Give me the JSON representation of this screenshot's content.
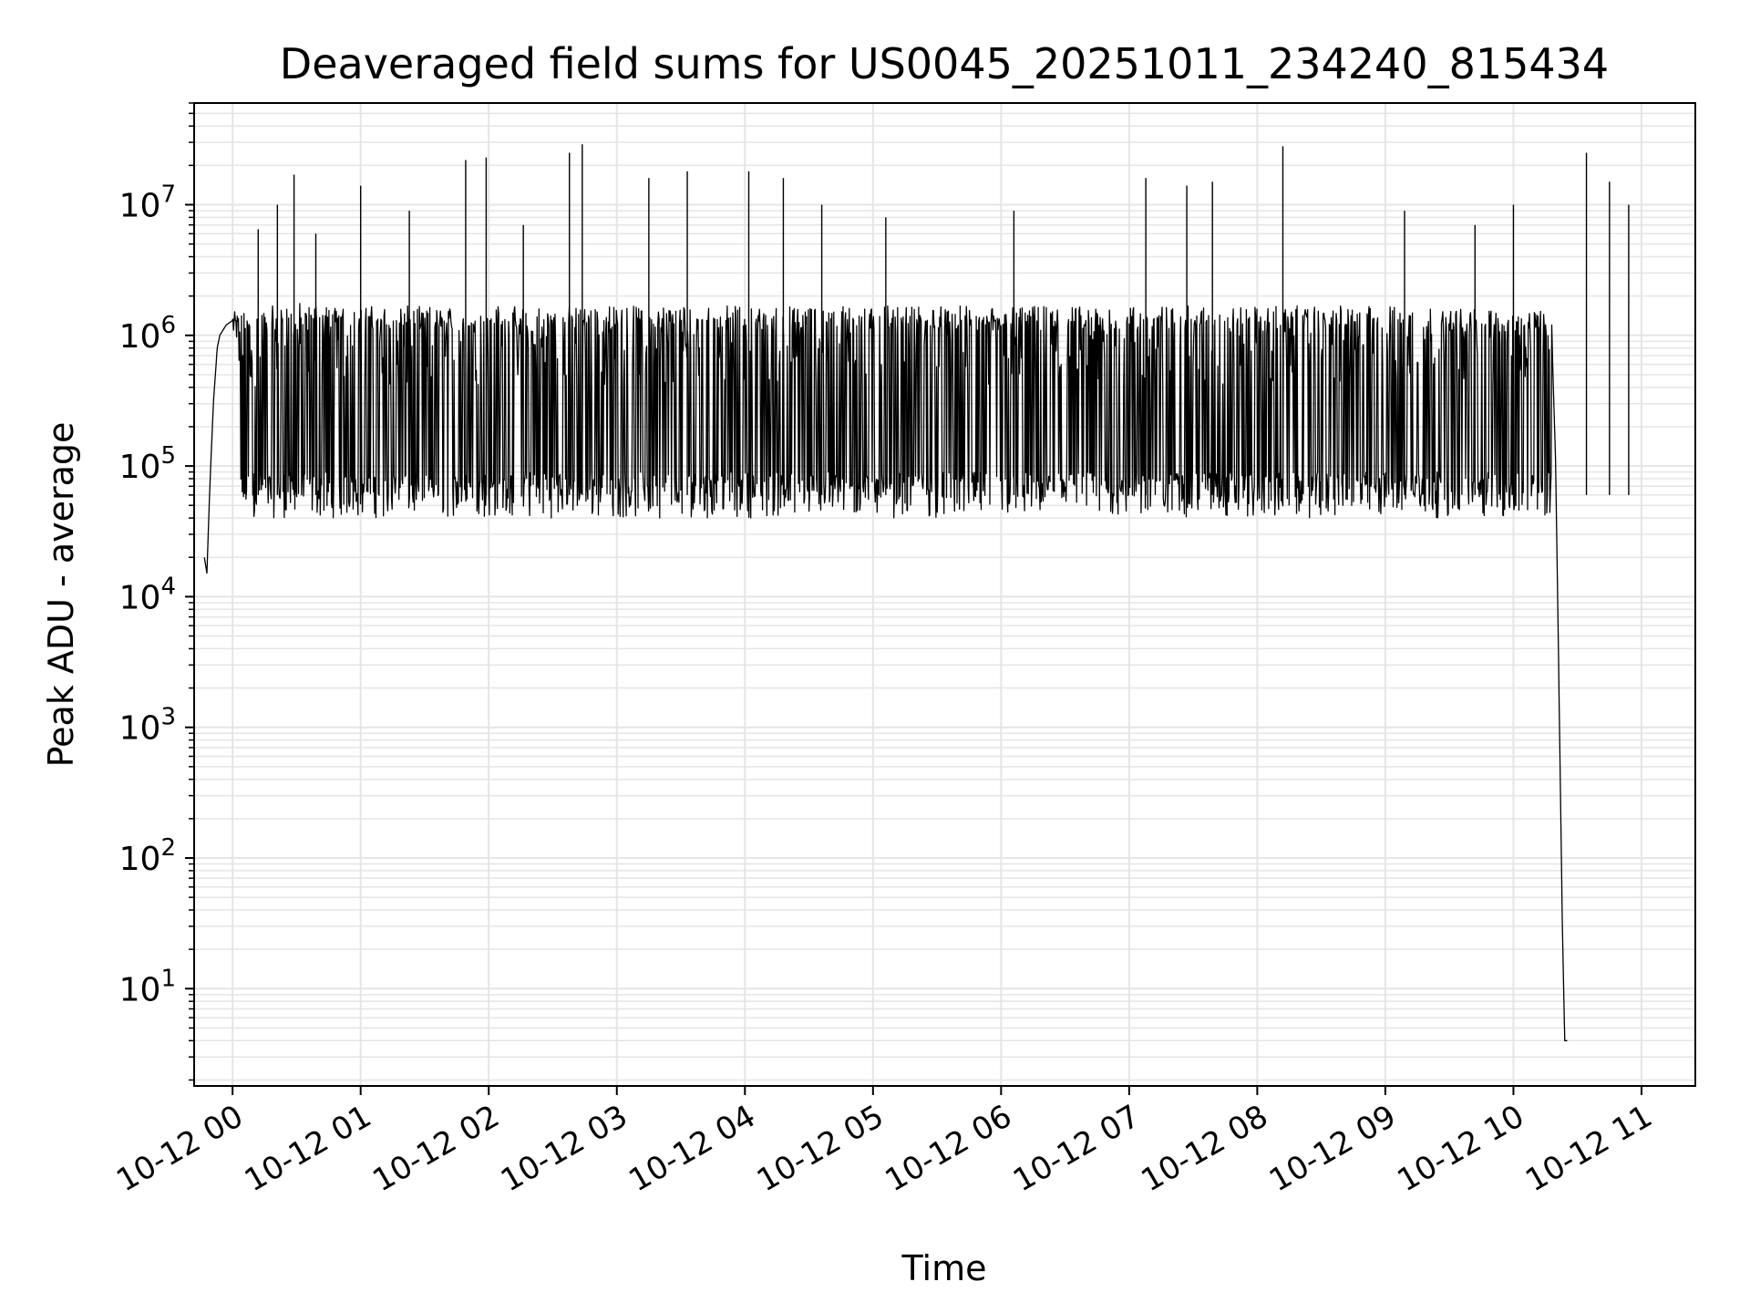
{
  "chart_data": {
    "type": "line",
    "title": "Deaveraged field sums for US0045_20251011_234240_815434",
    "xlabel": "Time",
    "ylabel": "Peak ADU - average",
    "yscale": "log",
    "ylim": [
      1.8,
      60000000
    ],
    "xlim_hours": [
      -0.3,
      11.42
    ],
    "grid": true,
    "line_color": "#000000",
    "grid_color": "#e5e5e5",
    "x_ticks": [
      {
        "hour": 0,
        "label": "10-12 00"
      },
      {
        "hour": 1,
        "label": "10-12 01"
      },
      {
        "hour": 2,
        "label": "10-12 02"
      },
      {
        "hour": 3,
        "label": "10-12 03"
      },
      {
        "hour": 4,
        "label": "10-12 04"
      },
      {
        "hour": 5,
        "label": "10-12 05"
      },
      {
        "hour": 6,
        "label": "10-12 06"
      },
      {
        "hour": 7,
        "label": "10-12 07"
      },
      {
        "hour": 8,
        "label": "10-12 08"
      },
      {
        "hour": 9,
        "label": "10-12 09"
      },
      {
        "hour": 10,
        "label": "10-12 10"
      },
      {
        "hour": 11,
        "label": "10-12 11"
      }
    ],
    "y_ticks": [
      {
        "value": 10,
        "base": "10",
        "exp": "1"
      },
      {
        "value": 100,
        "base": "10",
        "exp": "2"
      },
      {
        "value": 1000,
        "base": "10",
        "exp": "3"
      },
      {
        "value": 10000,
        "base": "10",
        "exp": "4"
      },
      {
        "value": 100000,
        "base": "10",
        "exp": "5"
      },
      {
        "value": 1000000,
        "base": "10",
        "exp": "6"
      },
      {
        "value": 10000000,
        "base": "10",
        "exp": "7"
      }
    ],
    "series": [
      {
        "name": "field sums",
        "envelope": {
          "x_hours": [
            -0.22,
            -0.2,
            -0.18,
            -0.15,
            -0.12,
            -0.1,
            -0.05,
            0.0,
            0.05,
            0.1,
            0.5,
            1.0,
            2.0,
            3.0,
            4.0,
            5.0,
            6.0,
            7.0,
            8.0,
            9.0,
            10.0,
            10.1,
            10.15,
            10.2,
            10.25,
            10.3,
            10.33,
            10.36,
            10.38,
            10.4,
            10.42
          ],
          "y": [
            20000,
            15000,
            60000,
            300000,
            800000,
            1000000,
            1200000,
            1300000,
            1200000,
            1300000,
            1500000,
            1400000,
            1400000,
            1400000,
            1400000,
            1400000,
            1400000,
            1400000,
            1400000,
            1400000,
            1300000,
            1200000,
            1300000,
            1400000,
            1400000,
            1000000,
            100000,
            1000,
            40,
            4,
            4
          ]
        },
        "spikes": [
          {
            "hour": 0.2,
            "y": 6500000
          },
          {
            "hour": 0.35,
            "y": 10000000
          },
          {
            "hour": 0.48,
            "y": 17000000
          },
          {
            "hour": 0.65,
            "y": 6000000
          },
          {
            "hour": 1.0,
            "y": 14000000
          },
          {
            "hour": 1.38,
            "y": 9000000
          },
          {
            "hour": 1.82,
            "y": 22000000
          },
          {
            "hour": 1.98,
            "y": 23000000
          },
          {
            "hour": 2.27,
            "y": 7000000
          },
          {
            "hour": 2.63,
            "y": 25000000
          },
          {
            "hour": 2.73,
            "y": 29000000
          },
          {
            "hour": 3.25,
            "y": 16000000
          },
          {
            "hour": 3.55,
            "y": 18000000
          },
          {
            "hour": 4.03,
            "y": 18000000
          },
          {
            "hour": 4.3,
            "y": 16000000
          },
          {
            "hour": 4.6,
            "y": 10000000
          },
          {
            "hour": 5.1,
            "y": 8000000
          },
          {
            "hour": 6.1,
            "y": 9000000
          },
          {
            "hour": 7.13,
            "y": 16000000
          },
          {
            "hour": 7.45,
            "y": 14000000
          },
          {
            "hour": 7.65,
            "y": 15000000
          },
          {
            "hour": 8.2,
            "y": 28000000
          },
          {
            "hour": 9.15,
            "y": 9000000
          },
          {
            "hour": 9.7,
            "y": 7000000
          },
          {
            "hour": 10.0,
            "y": 10000000
          },
          {
            "hour": 10.57,
            "y": 25000000
          },
          {
            "hour": 10.75,
            "y": 15000000
          },
          {
            "hour": 10.9,
            "y": 10000000
          }
        ],
        "baseline_range": [
          40000,
          90000
        ]
      }
    ]
  }
}
